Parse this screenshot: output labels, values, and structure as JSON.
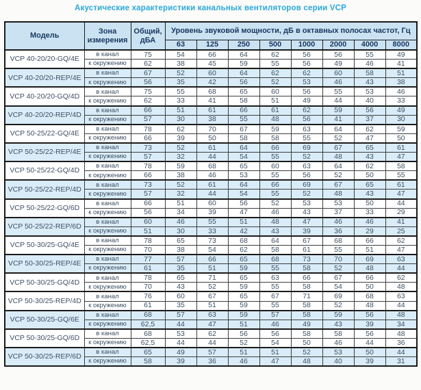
{
  "title": "Акустические характеристики канальных вентиляторов  серии VCP",
  "colors": {
    "title_text": "#29a8dc",
    "header_background": "#cbe2f2",
    "zebra_row_background": "#d9ecf8",
    "body_text": "#3d4f63",
    "header_text": "#17375e",
    "border": "#1a1a1a"
  },
  "table": {
    "headers": {
      "model": "Модель",
      "zone": "Зона измерения",
      "total": "Общий, дБА",
      "group": "Уровень звуковой мощности, дБ в октавных полосах частот, Гц",
      "frequencies": [
        "63",
        "125",
        "250",
        "500",
        "1000",
        "2000",
        "4000",
        "8000"
      ]
    },
    "zone_labels": [
      "в канал",
      "к окружению"
    ],
    "rows": [
      {
        "model": "VCP 40-20/20-GQ/4E",
        "shaded": false,
        "in_duct": {
          "total": "75",
          "levels": [
            54,
            66,
            64,
            62,
            56,
            56,
            55,
            49
          ]
        },
        "to_ambient": {
          "total": "62",
          "levels": [
            38,
            45,
            59,
            55,
            56,
            49,
            46,
            41
          ]
        }
      },
      {
        "model": "VCP 40-20/20-REP/4E",
        "shaded": true,
        "in_duct": {
          "total": "67",
          "levels": [
            52,
            60,
            64,
            62,
            62,
            60,
            58,
            51
          ]
        },
        "to_ambient": {
          "total": "56",
          "levels": [
            35,
            42,
            56,
            52,
            53,
            46,
            43,
            38
          ]
        }
      },
      {
        "model": "VCP 40-20/20-GQ/4D",
        "shaded": false,
        "in_duct": {
          "total": "75",
          "levels": [
            55,
            68,
            65,
            60,
            56,
            55,
            53,
            46
          ]
        },
        "to_ambient": {
          "total": "62",
          "levels": [
            33,
            41,
            58,
            51,
            49,
            44,
            40,
            33
          ]
        }
      },
      {
        "model": "VCP 40-20/20-REP/4D",
        "shaded": true,
        "in_duct": {
          "total": "66",
          "levels": [
            51,
            61,
            66,
            61,
            62,
            59,
            56,
            49
          ]
        },
        "to_ambient": {
          "total": "57",
          "levels": [
            30,
            38,
            55,
            48,
            56,
            41,
            37,
            30
          ]
        }
      },
      {
        "model": "VCP 50-25/22-GQ/4E",
        "shaded": false,
        "in_duct": {
          "total": "78",
          "levels": [
            62,
            70,
            67,
            59,
            63,
            64,
            62,
            59
          ]
        },
        "to_ambient": {
          "total": "66",
          "levels": [
            39,
            50,
            58,
            58,
            55,
            52,
            47,
            50
          ]
        }
      },
      {
        "model": "VCP 50-25/22-REP/4E",
        "shaded": true,
        "in_duct": {
          "total": "73",
          "levels": [
            52,
            61,
            64,
            66,
            69,
            67,
            65,
            61
          ]
        },
        "to_ambient": {
          "total": "57",
          "levels": [
            32,
            44,
            54,
            55,
            52,
            48,
            43,
            47
          ]
        }
      },
      {
        "model": "VCP 50-25/22-GQ/4D",
        "shaded": false,
        "in_duct": {
          "total": "78",
          "levels": [
            59,
            68,
            65,
            60,
            63,
            64,
            62,
            58
          ]
        },
        "to_ambient": {
          "total": "66",
          "levels": [
            38,
            46,
            53,
            55,
            56,
            52,
            50,
            55
          ]
        }
      },
      {
        "model": "VCP 50-25/22-REP/4D",
        "shaded": true,
        "in_duct": {
          "total": "73",
          "levels": [
            52,
            61,
            64,
            66,
            69,
            67,
            65,
            61
          ]
        },
        "to_ambient": {
          "total": "57",
          "levels": [
            32,
            44,
            54,
            55,
            52,
            48,
            43,
            47
          ]
        }
      },
      {
        "model": "VCP 50-25/22-GQ/6D",
        "shaded": false,
        "in_duct": {
          "total": "66",
          "levels": [
            51,
            60,
            56,
            52,
            53,
            53,
            50,
            44
          ]
        },
        "to_ambient": {
          "total": "56",
          "levels": [
            34,
            39,
            47,
            46,
            43,
            37,
            33,
            29
          ]
        }
      },
      {
        "model": "VCP 50-25/22-REP/6D",
        "shaded": true,
        "in_duct": {
          "total": "60",
          "levels": [
            46,
            55,
            51,
            48,
            47,
            46,
            46,
            41
          ]
        },
        "to_ambient": {
          "total": "51",
          "levels": [
            30,
            33,
            42,
            43,
            39,
            36,
            29,
            25
          ]
        }
      },
      {
        "model": "VCP 50-30/25-GQ/4E",
        "shaded": false,
        "in_duct": {
          "total": "78",
          "levels": [
            65,
            73,
            68,
            64,
            67,
            68,
            66,
            62
          ]
        },
        "to_ambient": {
          "total": "70",
          "levels": [
            38,
            54,
            62,
            58,
            61,
            55,
            51,
            47
          ]
        }
      },
      {
        "model": "VCP 50-30/25-REP/4E",
        "shaded": true,
        "in_duct": {
          "total": "77",
          "levels": [
            57,
            66,
            65,
            68,
            73,
            70,
            69,
            63
          ]
        },
        "to_ambient": {
          "total": "61",
          "levels": [
            35,
            51,
            59,
            55,
            58,
            52,
            48,
            44
          ]
        }
      },
      {
        "model": "VCP 50-30/25-GQ/4D",
        "shaded": false,
        "in_duct": {
          "total": "78",
          "levels": [
            65,
            71,
            65,
            63,
            66,
            67,
            66,
            62
          ]
        },
        "to_ambient": {
          "total": "70",
          "levels": [
            43,
            52,
            59,
            55,
            58,
            54,
            50,
            48
          ]
        }
      },
      {
        "model": "VCP 50-30/25-REP/4D",
        "shaded": false,
        "in_duct": {
          "total": "76",
          "levels": [
            60,
            67,
            65,
            67,
            71,
            69,
            68,
            63
          ]
        },
        "to_ambient": {
          "total": "61",
          "levels": [
            35,
            51,
            59,
            55,
            58,
            52,
            48,
            44
          ]
        }
      },
      {
        "model": "VCP 50-30/25-GQ/6E",
        "shaded": true,
        "in_duct": {
          "total": "68",
          "levels": [
            57,
            63,
            59,
            57,
            58,
            59,
            56,
            48
          ]
        },
        "to_ambient": {
          "total": "62,5",
          "levels": [
            44,
            47,
            51,
            46,
            49,
            43,
            39,
            34
          ]
        }
      },
      {
        "model": "VCP 50-30/25-GQ/6D",
        "shaded": false,
        "in_duct": {
          "total": "68",
          "levels": [
            53,
            62,
            56,
            56,
            58,
            58,
            56,
            48
          ]
        },
        "to_ambient": {
          "total": "62,5",
          "levels": [
            44,
            44,
            52,
            54,
            50,
            46,
            44,
            36
          ]
        }
      },
      {
        "model": "VCP 50-30/25-REP/6D",
        "shaded": true,
        "in_duct": {
          "total": "65",
          "levels": [
            49,
            57,
            51,
            51,
            52,
            53,
            50,
            44
          ]
        },
        "to_ambient": {
          "total": "58",
          "levels": [
            39,
            36,
            46,
            47,
            48,
            40,
            39,
            31
          ]
        }
      }
    ]
  }
}
